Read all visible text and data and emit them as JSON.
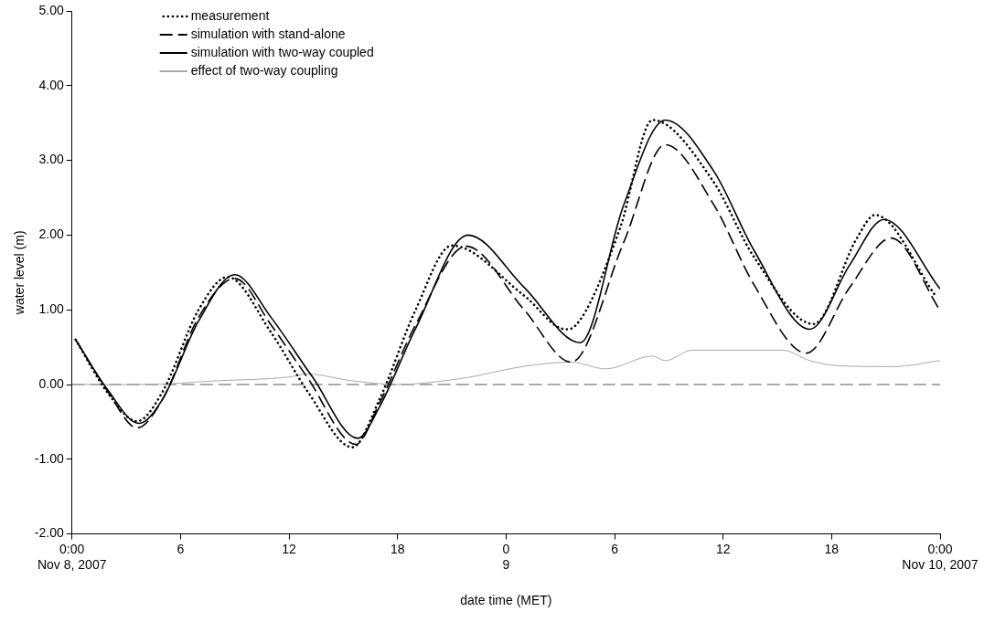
{
  "chart_data": {
    "type": "line",
    "xlabel": "date time (MET)",
    "ylabel": "water level (m)",
    "xlim": [
      "2007-11-08T00:00",
      "2007-11-10T00:00"
    ],
    "xticks": [
      {
        "value": "2007-11-08T00:00",
        "label": "0:00\nNov 8, 2007"
      },
      {
        "value": "2007-11-08T06:00",
        "label": "6"
      },
      {
        "value": "2007-11-08T12:00",
        "label": "12"
      },
      {
        "value": "2007-11-08T18:00",
        "label": "18"
      },
      {
        "value": "2007-11-09T00:00",
        "label": "0\n9"
      },
      {
        "value": "2007-11-09T06:00",
        "label": "6"
      },
      {
        "value": "2007-11-09T12:00",
        "label": "12"
      },
      {
        "value": "2007-11-09T18:00",
        "label": "18"
      },
      {
        "value": "2007-11-10T00:00",
        "label": "0:00\nNov 10, 2007"
      }
    ],
    "ylim": [
      -2,
      5
    ],
    "yticks": [
      {
        "value": -2,
        "label": "-2.00"
      },
      {
        "value": -1,
        "label": "-1.00"
      },
      {
        "value": 0,
        "label": "0.00"
      },
      {
        "value": 1,
        "label": "1.00"
      },
      {
        "value": 2,
        "label": "2.00"
      },
      {
        "value": 3,
        "label": "3.00"
      },
      {
        "value": 4,
        "label": "4.00"
      },
      {
        "value": 5,
        "label": "5.00"
      }
    ],
    "grid": false,
    "legend": "top left",
    "marker": "none",
    "ref_lines": [
      {
        "axis": "y",
        "value": 0,
        "color": "#555555",
        "line_style": "dashed"
      }
    ],
    "series": [
      {
        "name": "measurement",
        "color": "#000000",
        "line_style": "dotted",
        "x": [
          "2007-11-08T00:12",
          "2007-11-08T02:00",
          "2007-11-08T03:36",
          "2007-11-08T05:00",
          "2007-11-08T07:00",
          "2007-11-08T08:36",
          "2007-11-08T11:00",
          "2007-11-08T13:06",
          "2007-11-08T15:30",
          "2007-11-08T17:00",
          "2007-11-08T19:00",
          "2007-11-08T21:00",
          "2007-11-09T01:00",
          "2007-11-09T03:18",
          "2007-11-09T03:48",
          "2007-11-09T06:18",
          "2007-11-09T08:06",
          "2007-11-09T11:24",
          "2007-11-09T13:42",
          "2007-11-09T17:00",
          "2007-11-09T19:24",
          "2007-11-09T20:24",
          "2007-11-09T23:48"
        ],
        "values": [
          0.6,
          -0.12,
          -0.49,
          -0.1,
          1.0,
          1.44,
          0.7,
          -0.12,
          -0.84,
          -0.2,
          1.0,
          1.86,
          1.19,
          0.74,
          0.78,
          2.09,
          3.54,
          2.74,
          1.71,
          0.81,
          1.96,
          2.27,
          1.17
        ]
      },
      {
        "name": "simulation with stand-alone",
        "color": "#000000",
        "line_style": "dashed",
        "x": [
          "2007-11-08T00:12",
          "2007-11-08T02:00",
          "2007-11-08T03:36",
          "2007-11-08T05:00",
          "2007-11-08T07:00",
          "2007-11-08T09:00",
          "2007-11-08T11:00",
          "2007-11-08T13:00",
          "2007-11-08T15:42",
          "2007-11-08T17:00",
          "2007-11-08T19:00",
          "2007-11-08T21:48",
          "2007-11-09T01:00",
          "2007-11-09T03:36",
          "2007-11-09T06:30",
          "2007-11-09T08:48",
          "2007-11-09T11:30",
          "2007-11-09T13:42",
          "2007-11-09T16:36",
          "2007-11-09T19:00",
          "2007-11-09T21:18",
          "2007-11-10T00:00"
        ],
        "values": [
          0.6,
          -0.1,
          -0.58,
          -0.2,
          0.9,
          1.42,
          0.8,
          0.1,
          -0.8,
          -0.25,
          0.8,
          1.85,
          1.0,
          0.3,
          1.9,
          3.21,
          2.4,
          1.34,
          0.42,
          1.3,
          1.96,
          0.99
        ]
      },
      {
        "name": "simulation with two-way coupled",
        "color": "#000000",
        "line_style": "solid",
        "x": [
          "2007-11-08T00:12",
          "2007-11-08T02:00",
          "2007-11-08T03:42",
          "2007-11-08T05:00",
          "2007-11-08T07:00",
          "2007-11-08T09:00",
          "2007-11-08T11:00",
          "2007-11-08T13:18",
          "2007-11-08T15:48",
          "2007-11-08T17:00",
          "2007-11-08T19:00",
          "2007-11-08T21:54",
          "2007-11-09T01:00",
          "2007-11-09T04:06",
          "2007-11-09T06:30",
          "2007-11-09T08:48",
          "2007-11-09T11:30",
          "2007-11-09T13:42",
          "2007-11-09T16:48",
          "2007-11-09T19:00",
          "2007-11-09T20:54",
          "2007-11-10T00:00"
        ],
        "values": [
          0.6,
          -0.08,
          -0.52,
          -0.2,
          0.85,
          1.47,
          0.9,
          0.1,
          -0.72,
          -0.3,
          0.75,
          2.0,
          1.3,
          0.56,
          2.4,
          3.54,
          2.85,
          1.8,
          0.74,
          1.6,
          2.21,
          1.28
        ]
      },
      {
        "name": "effect of two-way coupling",
        "color": "#aaaaaa",
        "line_style": "solid",
        "x": [
          "2007-11-08T00:00",
          "2007-11-08T04:00",
          "2007-11-08T08:00",
          "2007-11-08T12:00",
          "2007-11-08T13:00",
          "2007-11-08T15:30",
          "2007-11-08T18:00",
          "2007-11-08T19:30",
          "2007-11-08T22:00",
          "2007-11-09T00:54",
          "2007-11-09T03:36",
          "2007-11-09T05:30",
          "2007-11-09T08:06",
          "2007-11-09T08:48",
          "2007-11-09T10:18",
          "2007-11-09T13:42",
          "2007-11-09T15:18",
          "2007-11-09T16:48",
          "2007-11-09T18:30",
          "2007-11-09T21:24",
          "2007-11-10T00:00"
        ],
        "values": [
          0,
          0,
          0.05,
          0.1,
          0.14,
          0.05,
          0,
          0.02,
          0.1,
          0.24,
          0.3,
          0.21,
          0.38,
          0.32,
          0.46,
          0.46,
          0.46,
          0.32,
          0.25,
          0.24,
          0.32
        ]
      }
    ]
  }
}
